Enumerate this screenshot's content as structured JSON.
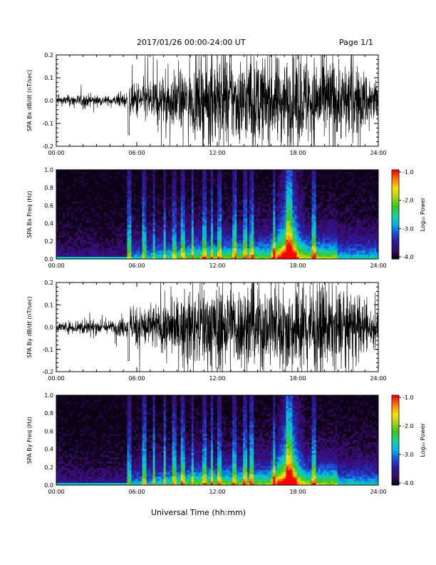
{
  "header": {
    "title": "2017/01/26  00:00-24:00 UT",
    "page": "Page 1/1"
  },
  "footer": {
    "xlabel": "Universal Time (hh:mm)"
  },
  "colorbar": {
    "label": "Log₁₀ Power",
    "ticks": [
      "-1.0",
      "-2.0",
      "-3.0",
      "-4.0"
    ],
    "range": [
      -4.0,
      -1.0
    ],
    "colors": [
      "#000000",
      "#3a0a6a",
      "#2a1a9a",
      "#1f4fd8",
      "#00b7e6",
      "#18d39a",
      "#39c41c",
      "#a6d80d",
      "#ffe000",
      "#ff7a00",
      "#ff0000"
    ]
  },
  "chart_data": [
    {
      "type": "line",
      "panel": "bx-timeseries",
      "ylabel": "SPA Bx dB/dt (nT/sec)",
      "xlabel": "",
      "xlim": [
        "00:00",
        "24:00"
      ],
      "ylim": [
        -0.2,
        0.2
      ],
      "xticks": [
        "00:00",
        "06:00",
        "12:00",
        "18:00",
        "24:00"
      ],
      "yticks": [
        "0.2",
        "0.1",
        "0.0",
        "-0.1",
        "-0.2"
      ],
      "series": [
        {
          "x_hours": [
            0,
            2,
            4,
            5.3,
            6,
            8,
            10,
            11,
            12,
            14,
            16,
            18,
            20,
            22,
            24
          ],
          "envelope": [
            0.02,
            0.03,
            0.02,
            0.04,
            0.09,
            0.12,
            0.14,
            0.2,
            0.2,
            0.2,
            0.2,
            0.2,
            0.2,
            0.18,
            0.1
          ]
        }
      ]
    },
    {
      "type": "heatmap",
      "panel": "bx-spectrogram",
      "ylabel": "SPA Bx Freq (Hz)",
      "xlim": [
        "00:00",
        "24:00"
      ],
      "ylim": [
        0.0,
        1.0
      ],
      "xticks": [
        "00:00",
        "06:00",
        "12:00",
        "18:00",
        "24:00"
      ],
      "yticks": [
        "1.0",
        "0.8",
        "0.6",
        "0.4",
        "0.2",
        "0.0"
      ],
      "clim": [
        -4.0,
        -1.0
      ]
    },
    {
      "type": "line",
      "panel": "by-timeseries",
      "ylabel": "SPA By dB/dt (nT/sec)",
      "xlabel": "",
      "xlim": [
        "00:00",
        "24:00"
      ],
      "ylim": [
        -0.2,
        0.2
      ],
      "xticks": [
        "00:00",
        "06:00",
        "12:00",
        "18:00",
        "24:00"
      ],
      "yticks": [
        "0.2",
        "0.1",
        "0.0",
        "-0.1",
        "-0.2"
      ],
      "series": [
        {
          "x_hours": [
            0,
            2,
            4,
            5.3,
            6,
            8,
            10,
            11,
            12,
            14,
            16,
            18,
            20,
            22,
            24
          ],
          "envelope": [
            0.02,
            0.04,
            0.03,
            0.05,
            0.1,
            0.12,
            0.15,
            0.2,
            0.2,
            0.2,
            0.2,
            0.2,
            0.2,
            0.17,
            0.08
          ]
        }
      ]
    },
    {
      "type": "heatmap",
      "panel": "by-spectrogram",
      "ylabel": "SPA By Freq (Hz)",
      "xlim": [
        "00:00",
        "24:00"
      ],
      "ylim": [
        0.0,
        1.0
      ],
      "xticks": [
        "00:00",
        "06:00",
        "12:00",
        "18:00",
        "24:00"
      ],
      "yticks": [
        "1.0",
        "0.8",
        "0.6",
        "0.4",
        "0.2",
        "0.0"
      ],
      "clim": [
        -4.0,
        -1.0
      ]
    }
  ]
}
